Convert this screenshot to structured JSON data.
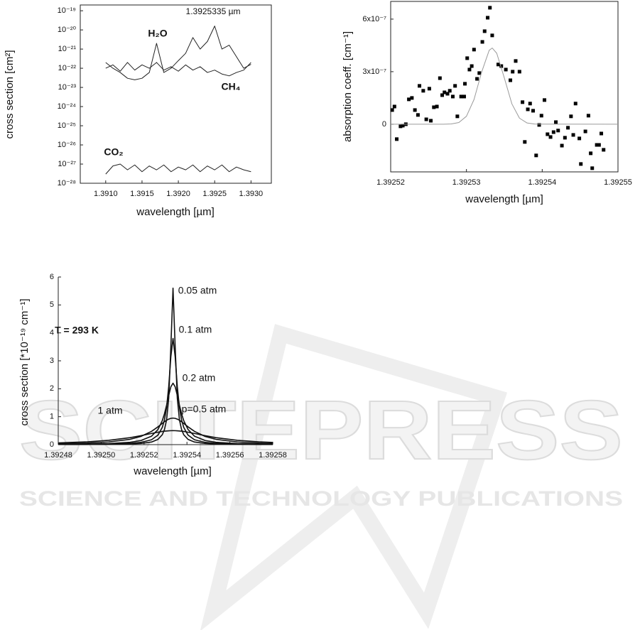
{
  "watermark": {
    "title": "SCITEPRESS",
    "subtitle": "SCIENCE AND TECHNOLOGY PUBLICATIONS"
  },
  "chart_data": [
    {
      "type": "line",
      "log_y": true,
      "x_label": "wavelength [µm]",
      "y_label": "cross section [cm²]",
      "annotations": [
        "1.3925335 µm"
      ],
      "xlim": [
        1.39065,
        1.39328
      ],
      "xticks": [
        {
          "value": 1.391,
          "label": "1.3910"
        },
        1.3915,
        {
          "value": 1.392,
          "label": "1.3920"
        },
        1.3925,
        {
          "value": 1.393,
          "label": "1.3930"
        }
      ],
      "ylim": [
        1e-28,
        2e-19
      ],
      "yticks": [
        {
          "value": 1e-28,
          "label": "10⁻²⁸"
        },
        {
          "value": 1e-27,
          "label": "10⁻²⁷"
        },
        {
          "value": 1e-26,
          "label": "10⁻²⁶"
        },
        {
          "value": 1e-25,
          "label": "10⁻²⁵"
        },
        {
          "value": 1e-24,
          "label": "10⁻²⁴"
        },
        {
          "value": 1e-23,
          "label": "10⁻²³"
        },
        {
          "value": 1e-22,
          "label": "10⁻²²"
        },
        {
          "value": 1e-21,
          "label": "10⁻²¹"
        },
        {
          "value": 1e-20,
          "label": "10⁻²⁰"
        },
        {
          "value": 1e-19,
          "label": "10⁻¹⁹"
        }
      ],
      "x": [
        1.391,
        1.3911,
        1.3912,
        1.3913,
        1.3914,
        1.3915,
        1.3916,
        1.3917,
        1.3918,
        1.3919,
        1.392,
        1.3921,
        1.3922,
        1.3923,
        1.3924,
        1.3925,
        1.3926,
        1.3927,
        1.3928,
        1.3929,
        1.393
      ],
      "series": [
        {
          "name": "H₂O",
          "color": "#222222",
          "values": [
            2e-22,
            1e-22,
            6e-23,
            3e-23,
            2.5e-23,
            3e-23,
            6e-23,
            2e-21,
            6e-23,
            1e-22,
            2.5e-22,
            6e-22,
            4e-21,
            1e-21,
            2.5e-21,
            1.6e-20,
            1e-21,
            1.6e-21,
            4e-22,
            1e-22,
            1.6e-22
          ]
        },
        {
          "name": "CH₄",
          "color": "#222222",
          "values": [
            1e-22,
            1.5e-22,
            7e-23,
            2e-22,
            8e-23,
            1.5e-22,
            1e-22,
            2e-22,
            8e-23,
            1.2e-22,
            7e-23,
            1.5e-22,
            8e-23,
            1.2e-22,
            6e-23,
            8e-23,
            5e-23,
            4e-23,
            6e-23,
            8e-23,
            2e-22
          ]
        },
        {
          "name": "CO₂",
          "color": "#222222",
          "values": [
            3e-28,
            8e-28,
            1e-27,
            5e-28,
            9e-28,
            4e-28,
            8e-28,
            5e-28,
            9e-28,
            4e-28,
            7e-28,
            5e-28,
            9e-28,
            4e-28,
            8e-28,
            5e-28,
            9e-28,
            4e-28,
            7e-28,
            5e-28,
            4e-28
          ]
        }
      ]
    },
    {
      "type": "scatter",
      "x_label": "wavelength [µm]",
      "y_label": "absorption coeff. [cm⁻¹]",
      "xlim": [
        1.39252,
        1.39255
      ],
      "xticks": [
        1.39252,
        1.39253,
        1.39254,
        1.39255
      ],
      "ylim": [
        -2.72e-07,
        7.01e-07
      ],
      "yticks": [
        0,
        {
          "value": 3e-07,
          "label": "3x10⁻⁷"
        },
        {
          "value": 6e-07,
          "label": "6x10⁻⁷"
        }
      ],
      "series": [
        {
          "mode": "markers",
          "color": "#000000",
          "x": [
            1.3925202,
            1.3925205,
            1.3925208,
            1.3925213,
            1.3925216,
            1.392522,
            1.3925224,
            1.3925228,
            1.3925232,
            1.3925236,
            1.3925238,
            1.3925243,
            1.3925247,
            1.3925251,
            1.3925253,
            1.3925257,
            1.3925261,
            1.3925265,
            1.3925268,
            1.3925271,
            1.3925275,
            1.3925278,
            1.3925282,
            1.3925285,
            1.3925288,
            1.3925293,
            1.3925297,
            1.3925298,
            1.3925301,
            1.3925304,
            1.3925307,
            1.392531,
            1.3925314,
            1.3925317,
            1.3925321,
            1.3925324,
            1.3925328,
            1.3925331,
            1.3925334,
            1.3925342,
            1.3925346,
            1.3925352,
            1.3925358,
            1.3925361,
            1.3925365,
            1.392537,
            1.3925374,
            1.3925377,
            1.3925381,
            1.3925384,
            1.3925388,
            1.3925392,
            1.3925396,
            1.3925399,
            1.3925403,
            1.3925407,
            1.3925411,
            1.3925415,
            1.3925418,
            1.3925421,
            1.3925426,
            1.392543,
            1.3925434,
            1.3925438,
            1.3925441,
            1.3925444,
            1.3925449,
            1.3925451,
            1.3925457,
            1.3925461,
            1.3925464,
            1.3925466,
            1.3925472,
            1.3925475,
            1.3925478,
            1.3925481
          ],
          "values": [
            8.1e-08,
            1.01e-07,
            -8.5e-08,
            -1.2e-08,
            -8e-09,
            0,
            1.42e-07,
            1.5e-07,
            8.1e-08,
            5.3e-08,
            2.19e-07,
            1.91e-07,
            2.8e-08,
            2.03e-07,
            2e-08,
            9.7e-08,
            1.01e-07,
            2.63e-07,
            1.66e-07,
            1.82e-07,
            1.74e-07,
            1.91e-07,
            1.58e-07,
            2.19e-07,
            4.5e-08,
            1.58e-07,
            1.58e-07,
            2.31e-07,
            3.77e-07,
            3.12e-07,
            3.32e-07,
            4.26e-07,
            2.59e-07,
            2.92e-07,
            4.7e-07,
            5.31e-07,
            6.08e-07,
            6.65e-07,
            5.07e-07,
            3.41e-07,
            3.32e-07,
            3.12e-07,
            2.51e-07,
            3e-07,
            3.61e-07,
            3e-07,
            1.26e-07,
            -1.01e-07,
            8.5e-08,
            1.18e-07,
            7.7e-08,
            -1.78e-07,
            -4e-09,
            4.9e-08,
            1.38e-07,
            -5.7e-08,
            -7.3e-08,
            -4.5e-08,
            1.2e-08,
            -3.6e-08,
            -1.22e-07,
            -7.7e-08,
            -2e-08,
            4.5e-08,
            -6.1e-08,
            1.18e-07,
            -8.1e-08,
            -2.27e-07,
            -4.1e-08,
            4.9e-08,
            -1.66e-07,
            -2.51e-07,
            -1.18e-07,
            -1.18e-07,
            -5.3e-08,
            -1.46e-07
          ]
        },
        {
          "mode": "line",
          "color": "#9a9a9a",
          "x": [
            1.39252,
            1.392527,
            1.392528,
            1.392529,
            1.39253,
            1.392531,
            1.392532,
            1.392533,
            1.3925334,
            1.392534,
            1.392535,
            1.392536,
            1.392537,
            1.392538,
            1.392539,
            1.39255
          ],
          "values": [
            0,
            1.5e-10,
            1.5e-09,
            9.9e-09,
            4.55e-08,
            1.41e-07,
            2.97e-07,
            4.22e-07,
            4.35e-07,
            4.05e-07,
            2.64e-07,
            1.16e-07,
            3.46e-08,
            7e-09,
            9.5e-10,
            0
          ]
        }
      ]
    },
    {
      "type": "line",
      "x_label": "wavelength [µm]",
      "y_label": "cross section [*10⁻¹⁹ cm⁻¹]",
      "annotations": [
        "T = 293 K"
      ],
      "xlim": [
        1.39248,
        1.39258
      ],
      "xticks": [
        1.39248,
        {
          "value": 1.3925,
          "label": "1.39250"
        },
        1.39252,
        1.39254,
        1.39256,
        1.39258
      ],
      "ylim": [
        0,
        6
      ],
      "yticks": [
        0,
        1,
        2,
        3,
        4,
        5,
        6
      ],
      "x": [
        1.39248,
        1.3924935,
        1.3925035,
        1.3925135,
        1.3925185,
        1.3925235,
        1.3925265,
        1.3925285,
        1.3925295,
        1.3925305,
        1.3925315,
        1.3925325,
        1.3925335,
        1.3925345,
        1.3925355,
        1.3925365,
        1.3925375,
        1.3925385,
        1.3925405,
        1.3925435,
        1.3925485,
        1.3925535,
        1.3925635,
        1.3925735,
        1.39258
      ],
      "series": [
        {
          "name": "0.05 atm",
          "color": "#111111",
          "values": [
            0.0033,
            0.0059,
            0.0105,
            0.0236,
            0.0418,
            0.093,
            0.187,
            0.354,
            0.535,
            0.885,
            1.66,
            3.52,
            5.6,
            3.52,
            1.66,
            0.885,
            0.535,
            0.354,
            0.187,
            0.093,
            0.0418,
            0.0236,
            0.0105,
            0.0059,
            0.0043
          ]
        },
        {
          "name": "0.1 atm",
          "color": "#111111",
          "values": [
            0.0065,
            0.0115,
            0.0204,
            0.0455,
            0.08,
            0.175,
            0.342,
            0.616,
            0.882,
            1.33,
            2.08,
            3.15,
            3.8,
            3.15,
            2.08,
            1.33,
            0.882,
            0.616,
            0.342,
            0.175,
            0.08,
            0.0455,
            0.0204,
            0.0115,
            0.0084
          ]
        },
        {
          "name": "0.2 atm",
          "color": "#111111",
          "values": [
            0.0123,
            0.0218,
            0.0384,
            0.0846,
            0.146,
            0.303,
            0.542,
            0.859,
            1.1,
            1.41,
            1.76,
            2.07,
            2.2,
            2.07,
            1.76,
            1.41,
            1.1,
            0.859,
            0.542,
            0.303,
            0.146,
            0.0846,
            0.0384,
            0.0218,
            0.016
          ]
        },
        {
          "name": "p=0.5 atm",
          "color": "#111111",
          "values": [
            0.0322,
            0.0559,
            0.095,
            0.19,
            0.292,
            0.475,
            0.638,
            0.76,
            0.819,
            0.872,
            0.913,
            0.941,
            0.95,
            0.941,
            0.913,
            0.872,
            0.819,
            0.76,
            0.638,
            0.475,
            0.292,
            0.19,
            0.095,
            0.0559,
            0.0417
          ]
        },
        {
          "name": "1 atm",
          "color": "#111111",
          "values": [
            0.0616,
            0.1,
            0.154,
            0.25,
            0.32,
            0.4,
            0.445,
            0.471,
            0.481,
            0.489,
            0.495,
            0.499,
            0.5,
            0.499,
            0.495,
            0.489,
            0.481,
            0.471,
            0.445,
            0.4,
            0.32,
            0.25,
            0.154,
            0.1,
            0.0776
          ]
        }
      ]
    }
  ]
}
